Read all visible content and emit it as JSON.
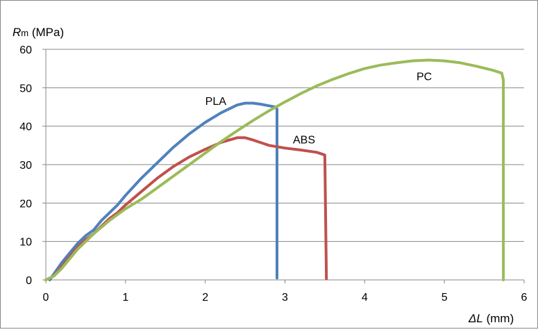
{
  "chart_data": {
    "type": "line",
    "ylabel": {
      "symbol": "R",
      "subscript": "m",
      "unit": "(MPa)"
    },
    "xlabel": {
      "prefix": "Δ",
      "symbol": "L",
      "unit": "(mm)"
    },
    "xlim": [
      0,
      6
    ],
    "ylim": [
      0,
      60
    ],
    "x_ticks": [
      "0",
      "1",
      "2",
      "3",
      "4",
      "5",
      "6"
    ],
    "y_ticks": [
      "0",
      "10",
      "20",
      "30",
      "40",
      "50",
      "60"
    ],
    "grid": "horizontal",
    "series": [
      {
        "name": "PLA",
        "color": "#4f81bd",
        "points": [
          [
            0.05,
            0
          ],
          [
            0.1,
            1.5
          ],
          [
            0.2,
            4.5
          ],
          [
            0.3,
            7
          ],
          [
            0.4,
            9.5
          ],
          [
            0.5,
            11.5
          ],
          [
            0.6,
            13
          ],
          [
            0.7,
            15.5
          ],
          [
            0.8,
            17.5
          ],
          [
            0.9,
            19.5
          ],
          [
            1.0,
            22
          ],
          [
            1.2,
            26.5
          ],
          [
            1.4,
            30.5
          ],
          [
            1.6,
            34.5
          ],
          [
            1.8,
            38
          ],
          [
            2.0,
            41
          ],
          [
            2.2,
            43.5
          ],
          [
            2.4,
            45.5
          ],
          [
            2.5,
            46
          ],
          [
            2.6,
            46
          ],
          [
            2.7,
            45.7
          ],
          [
            2.8,
            45.3
          ],
          [
            2.88,
            45
          ],
          [
            2.9,
            44.5
          ],
          [
            2.9,
            0.5
          ]
        ]
      },
      {
        "name": "ABS",
        "color": "#c0504d",
        "points": [
          [
            0.0,
            0
          ],
          [
            0.1,
            1
          ],
          [
            0.2,
            3.5
          ],
          [
            0.3,
            6
          ],
          [
            0.4,
            8.5
          ],
          [
            0.5,
            10.5
          ],
          [
            0.6,
            12
          ],
          [
            0.7,
            14
          ],
          [
            0.8,
            16
          ],
          [
            0.9,
            17.5
          ],
          [
            1.0,
            19.5
          ],
          [
            1.2,
            23
          ],
          [
            1.4,
            26.5
          ],
          [
            1.6,
            29.5
          ],
          [
            1.8,
            32
          ],
          [
            2.0,
            34
          ],
          [
            2.2,
            35.8
          ],
          [
            2.4,
            37
          ],
          [
            2.5,
            37
          ],
          [
            2.6,
            36.4
          ],
          [
            2.8,
            35
          ],
          [
            3.0,
            34.3
          ],
          [
            3.2,
            33.8
          ],
          [
            3.4,
            33.2
          ],
          [
            3.5,
            32.5
          ],
          [
            3.52,
            0.3
          ]
        ]
      },
      {
        "name": "PC",
        "color": "#9bbb59",
        "points": [
          [
            0.0,
            0
          ],
          [
            0.1,
            1
          ],
          [
            0.2,
            3
          ],
          [
            0.3,
            5.5
          ],
          [
            0.4,
            8
          ],
          [
            0.5,
            10
          ],
          [
            0.6,
            12
          ],
          [
            0.8,
            15.5
          ],
          [
            1.0,
            18.5
          ],
          [
            1.2,
            21
          ],
          [
            1.4,
            24
          ],
          [
            1.6,
            27
          ],
          [
            1.8,
            30
          ],
          [
            2.0,
            33
          ],
          [
            2.2,
            36
          ],
          [
            2.4,
            38.8
          ],
          [
            2.6,
            41.5
          ],
          [
            2.8,
            44
          ],
          [
            3.0,
            46.3
          ],
          [
            3.2,
            48.5
          ],
          [
            3.4,
            50.5
          ],
          [
            3.6,
            52.2
          ],
          [
            3.8,
            53.7
          ],
          [
            4.0,
            55
          ],
          [
            4.2,
            55.9
          ],
          [
            4.4,
            56.5
          ],
          [
            4.6,
            57
          ],
          [
            4.8,
            57.2
          ],
          [
            5.0,
            57
          ],
          [
            5.2,
            56.5
          ],
          [
            5.4,
            55.6
          ],
          [
            5.6,
            54.6
          ],
          [
            5.72,
            53.8
          ],
          [
            5.74,
            52
          ],
          [
            5.74,
            0
          ]
        ]
      }
    ],
    "annotations": [
      {
        "text": "PLA",
        "x": 2.0,
        "y": 45.5
      },
      {
        "text": "ABS",
        "x": 3.1,
        "y": 35.5
      },
      {
        "text": "PC",
        "x": 4.65,
        "y": 52.0
      }
    ]
  }
}
